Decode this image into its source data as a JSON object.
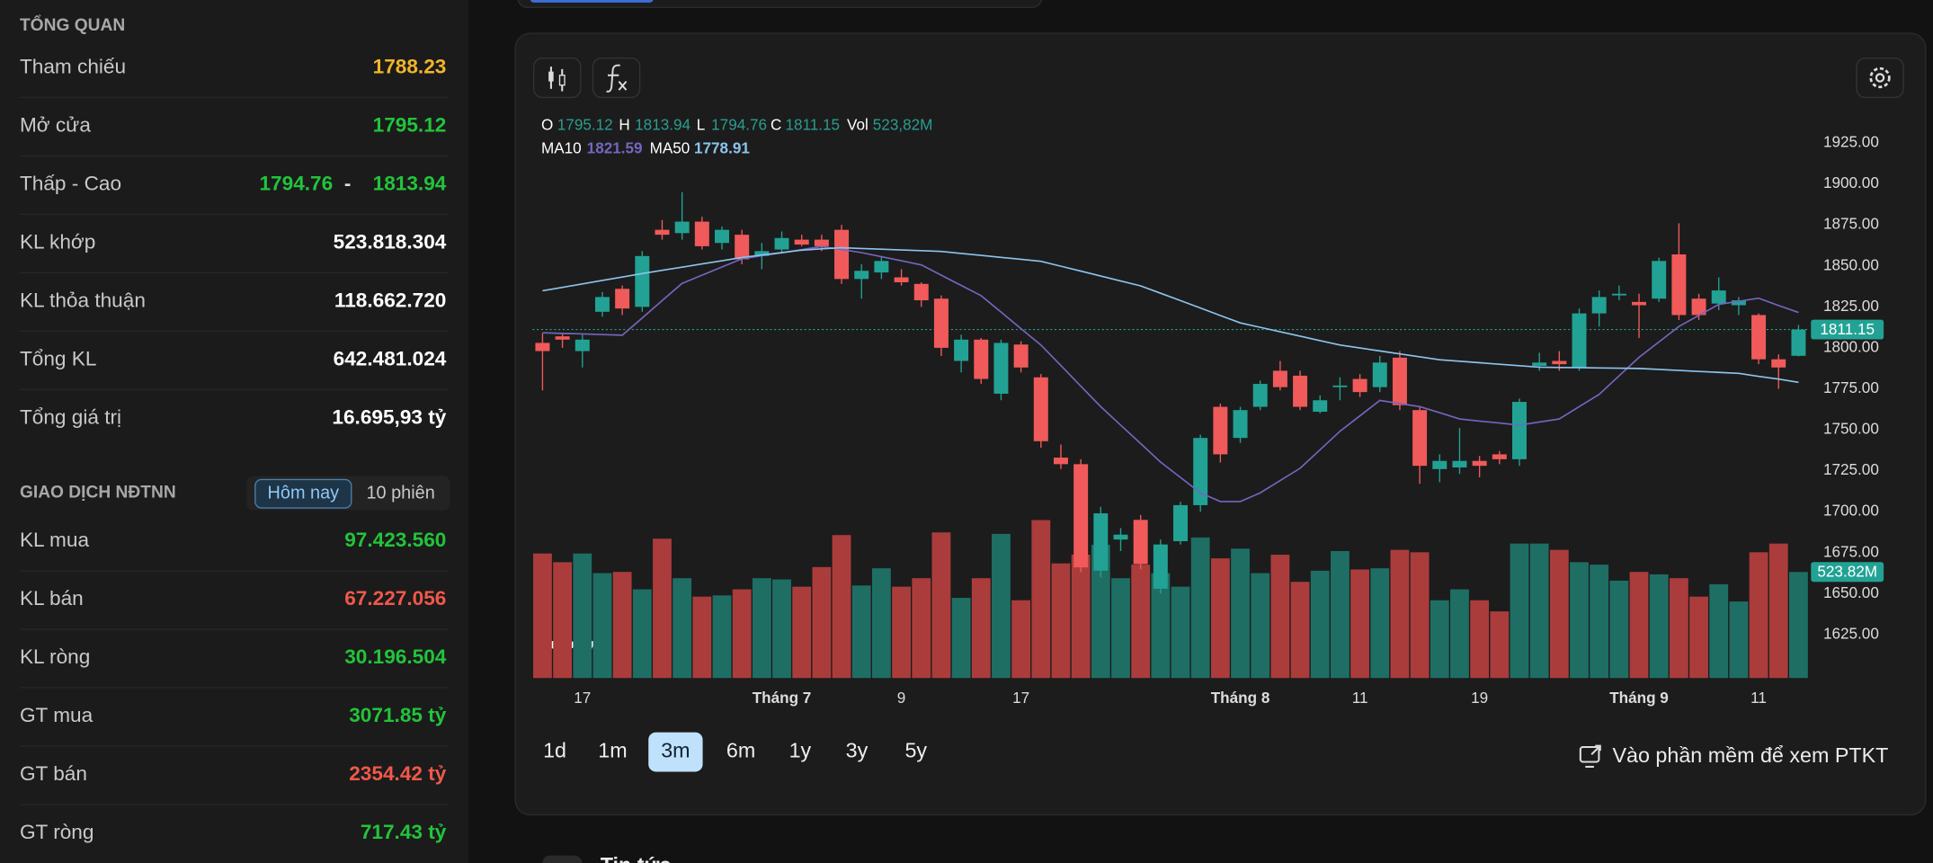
{
  "overview": {
    "title": "TỔNG QUAN",
    "rows": [
      {
        "label": "Tham chiếu",
        "value": "1788.23",
        "color": "#f2b52a"
      },
      {
        "label": "Mở cửa",
        "value": "1795.12",
        "color": "#22c43a"
      },
      {
        "label": "Thấp - Cao",
        "low": "1794.76",
        "separator": "-",
        "high": "1813.94",
        "color": "#22c43a"
      },
      {
        "label": "KL khớp",
        "value": "523.818.304",
        "color": "#ffffff"
      },
      {
        "label": "KL thỏa thuận",
        "value": "118.662.720",
        "color": "#ffffff"
      },
      {
        "label": "Tổng KL",
        "value": "642.481.024",
        "color": "#ffffff"
      },
      {
        "label": "Tổng giá trị",
        "value": "16.695,93 tỷ",
        "color": "#ffffff"
      }
    ]
  },
  "foreign": {
    "title": "GIAO DỊCH NĐTNN",
    "tabs": [
      "Hôm nay",
      "10 phiên"
    ],
    "rows": [
      {
        "label": "KL mua",
        "value": "97.423.560",
        "color": "#22c43a"
      },
      {
        "label": "KL bán",
        "value": "67.227.056",
        "color": "#f0584a"
      },
      {
        "label": "KL ròng",
        "value": "30.196.504",
        "color": "#22c43a"
      },
      {
        "label": "GT mua",
        "value": "3071.85 tỷ",
        "color": "#22c43a"
      },
      {
        "label": "GT bán",
        "value": "2354.42 tỷ",
        "color": "#f0584a"
      },
      {
        "label": "GT ròng",
        "value": "717.43 tỷ",
        "color": "#22c43a"
      }
    ]
  },
  "chart_data": {
    "type": "candlestick",
    "categories": [
      null,
      null,
      "17",
      null,
      null,
      null,
      null,
      null,
      null,
      null,
      null,
      null,
      "Tháng 7",
      null,
      null,
      null,
      null,
      null,
      "9",
      null,
      null,
      null,
      null,
      null,
      "17",
      null,
      null,
      null,
      null,
      null,
      null,
      null,
      null,
      null,
      null,
      "Tháng 8",
      null,
      null,
      null,
      null,
      null,
      "11",
      null,
      null,
      null,
      null,
      null,
      "19",
      null,
      null,
      null,
      null,
      null,
      null,
      null,
      "Tháng 9",
      null,
      null,
      null,
      null,
      null,
      "11",
      null,
      null
    ],
    "open": [
      1803,
      1807,
      1798,
      1822,
      1836,
      1825,
      1872,
      1870,
      1877,
      1864,
      1869,
      1856,
      1860,
      1866,
      1866,
      1872,
      1842,
      1846,
      1843,
      1839,
      1830,
      1792,
      1805,
      1772,
      1802,
      1782,
      1733,
      1729,
      1664,
      1683,
      1695,
      1653,
      1682,
      1704,
      1764,
      1745,
      1764,
      1786,
      1783,
      1761,
      1776,
      1781,
      1776,
      1794,
      1762,
      1726,
      1727,
      1731,
      1735,
      1732,
      1789,
      1792,
      1788,
      1821,
      1832,
      1828,
      1830,
      1857,
      1830,
      1827,
      1826,
      1820,
      1793,
      1795.12
    ],
    "high": [
      1809,
      1809,
      1808,
      1834,
      1838,
      1859,
      1878,
      1895,
      1880,
      1874,
      1872,
      1864,
      1871,
      1869,
      1869,
      1875,
      1851,
      1856,
      1848,
      1840,
      1832,
      1808,
      1806,
      1805,
      1804,
      1784,
      1741,
      1732,
      1703,
      1690,
      1698,
      1683,
      1706,
      1747,
      1766,
      1764,
      1780,
      1792,
      1786,
      1771,
      1782,
      1784,
      1795,
      1798,
      1764,
      1735,
      1751,
      1734,
      1737,
      1769,
      1797,
      1798,
      1824,
      1835,
      1838,
      1833,
      1855,
      1876,
      1833,
      1843,
      1831,
      1821,
      1796,
      1813.94
    ],
    "low": [
      1774,
      1800,
      1788,
      1819,
      1820,
      1822,
      1866,
      1866,
      1860,
      1860,
      1851,
      1848,
      1858,
      1862,
      1859,
      1839,
      1830,
      1842,
      1838,
      1825,
      1795,
      1785,
      1778,
      1768,
      1785,
      1739,
      1726,
      1663,
      1660,
      1676,
      1665,
      1650,
      1680,
      1700,
      1730,
      1742,
      1762,
      1774,
      1762,
      1760,
      1768,
      1770,
      1773,
      1762,
      1717,
      1718,
      1723,
      1721,
      1729,
      1728,
      1786,
      1786,
      1786,
      1813,
      1829,
      1806,
      1828,
      1817,
      1817,
      1823,
      1820,
      1790,
      1775,
      1794.76
    ],
    "close": [
      1798,
      1805,
      1805,
      1831,
      1824,
      1856,
      1869,
      1877,
      1862,
      1872,
      1854,
      1859,
      1867,
      1863,
      1862,
      1842,
      1847,
      1853,
      1840,
      1829,
      1800,
      1805,
      1781,
      1803,
      1788,
      1743,
      1729,
      1666,
      1699,
      1686,
      1668,
      1680,
      1704,
      1745,
      1735,
      1762,
      1778,
      1776,
      1764,
      1768,
      1777,
      1773,
      1791,
      1765,
      1728,
      1731,
      1731,
      1728,
      1732,
      1767,
      1791,
      1790,
      1821,
      1831,
      1833,
      1826,
      1853,
      1820,
      1820,
      1835,
      1829,
      1793,
      1788,
      1811.15
    ],
    "volume": [
      615,
      572,
      615,
      518,
      524,
      438,
      688,
      493,
      402,
      408,
      438,
      493,
      487,
      451,
      548,
      706,
      457,
      542,
      451,
      493,
      719,
      396,
      493,
      712,
      384,
      780,
      566,
      609,
      658,
      493,
      560,
      518,
      451,
      694,
      591,
      639,
      518,
      609,
      475,
      530,
      627,
      536,
      542,
      633,
      621,
      384,
      438,
      384,
      329,
      664,
      664,
      633,
      572,
      560,
      481,
      524,
      512,
      493,
      402,
      463,
      378,
      621,
      664,
      523.82
    ],
    "series": [
      {
        "name": "MA10",
        "color": "#7466c0",
        "values": [
          1809.2,
          1808.8,
          1808.5,
          1808.1,
          1807.7,
          1818.2,
          1828.8,
          1839.3,
          1844.3,
          1849.3,
          1854.3,
          1856.2,
          1858.0,
          1859.9,
          1861.8,
          1860.0,
          1858.1,
          1855.6,
          1853.1,
          1850.6,
          1844.3,
          1838.1,
          1831.8,
          1821.8,
          1811.7,
          1801.7,
          1789.2,
          1776.6,
          1764.1,
          1752.8,
          1741.6,
          1730.3,
          1720.9,
          1711.5,
          1706.2,
          1706.2,
          1711.5,
          1719.0,
          1726.5,
          1737.8,
          1749.1,
          1758.5,
          1767.9,
          1766.0,
          1764.1,
          1760.4,
          1756.6,
          1755.3,
          1754.1,
          1752.8,
          1754.7,
          1756.6,
          1764.1,
          1771.6,
          1782.9,
          1794.2,
          1803.6,
          1813.0,
          1819.8,
          1826.5,
          1828.4,
          1830.3,
          1825.8,
          1821.59
        ]
      },
      {
        "name": "MA50",
        "color": "#8cc4ec",
        "values": [
          1834.8,
          1836.9,
          1839.0,
          1841.1,
          1843.2,
          1845.3,
          1847.3,
          1849.2,
          1851.2,
          1853.1,
          1855.1,
          1856.6,
          1858.1,
          1859.6,
          1860.4,
          1861.1,
          1860.6,
          1860.2,
          1859.7,
          1859.3,
          1858.8,
          1857.6,
          1856.4,
          1855.2,
          1854.0,
          1852.8,
          1849.8,
          1846.8,
          1843.8,
          1840.8,
          1837.8,
          1833.3,
          1828.8,
          1824.3,
          1819.7,
          1815.2,
          1812.5,
          1809.8,
          1807.1,
          1804.4,
          1801.7,
          1799.9,
          1798.1,
          1796.3,
          1794.5,
          1792.7,
          1791.8,
          1790.9,
          1790.0,
          1789.1,
          1788.2,
          1788.0,
          1787.9,
          1787.7,
          1787.6,
          1787.4,
          1786.8,
          1786.2,
          1785.6,
          1785.0,
          1784.4,
          1782.6,
          1780.9,
          1778.91
        ]
      }
    ],
    "up_color": "#22a294",
    "down_color": "#f05a5a",
    "volume_up_color": "#1e6e64",
    "volume_down_color": "#ab3c3c",
    "ylim": [
      1598.5,
      1944.5
    ],
    "yticks": [
      {
        "value": 1625,
        "label": "1625.00"
      },
      {
        "value": 1650,
        "label": "1650.00"
      },
      {
        "value": 1675,
        "label": "1675.00"
      },
      {
        "value": 1700,
        "label": "1700.00"
      },
      {
        "value": 1725,
        "label": "1725.00"
      },
      {
        "value": 1750,
        "label": "1750.00"
      },
      {
        "value": 1775,
        "label": "1775.00"
      },
      {
        "value": 1800,
        "label": "1800.00"
      },
      {
        "value": 1825,
        "label": "1825.00"
      },
      {
        "value": 1850,
        "label": "1850.00"
      },
      {
        "value": 1875,
        "label": "1875.00"
      },
      {
        "value": 1900,
        "label": "1900.00"
      },
      {
        "value": 1925,
        "label": "1925.00"
      }
    ],
    "y2lim": [
      0,
      2800
    ],
    "legend_labels": {
      "open": "O",
      "high": "H",
      "low": "L",
      "close": "C",
      "volume": "Vol"
    },
    "legend_volume": "523,82M",
    "volume_tag": "523.82M"
  },
  "toolbar": {
    "ranges": [
      "1d",
      "1m",
      "3m",
      "6m",
      "1y",
      "3y",
      "5y"
    ],
    "active": "3m",
    "link": "Vào phần mềm để xem PTKT"
  },
  "news": {
    "title": "Tin tức"
  }
}
